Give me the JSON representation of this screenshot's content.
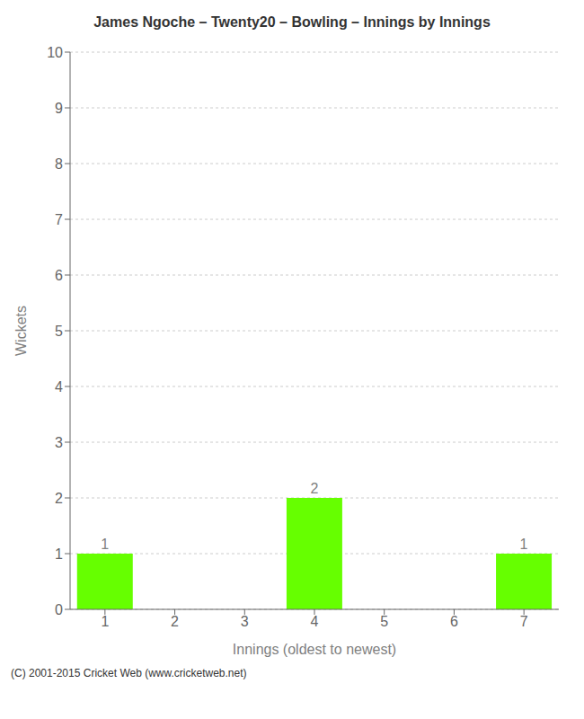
{
  "chart_data": {
    "type": "bar",
    "title": "James Ngoche – Twenty20 – Bowling – Innings by Innings",
    "xlabel": "Innings (oldest to newest)",
    "ylabel": "Wickets",
    "categories": [
      "1",
      "2",
      "3",
      "4",
      "5",
      "6",
      "7"
    ],
    "values": [
      1,
      0,
      0,
      2,
      0,
      0,
      1
    ],
    "color": "#66ff00",
    "ylim": [
      0,
      10
    ],
    "yticks": [
      0,
      1,
      2,
      3,
      4,
      5,
      6,
      7,
      8,
      9,
      10
    ],
    "grid": true,
    "data_labels": true,
    "annotations": [
      "(C) 2001-2015 Cricket Web (www.cricketweb.net)"
    ]
  }
}
